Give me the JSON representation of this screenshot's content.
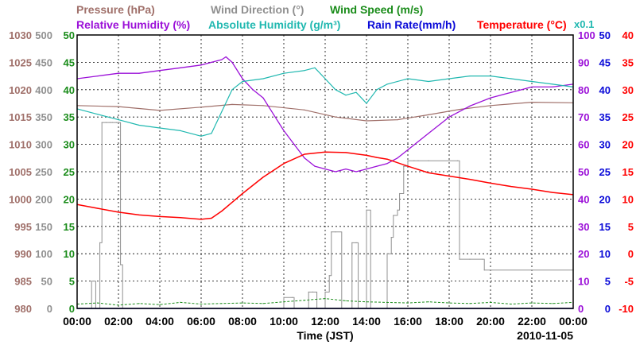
{
  "chart_data": {
    "type": "line",
    "date": "2010-11-05",
    "xlabel": "Time (JST)",
    "scale_note": "x0.1",
    "x_ticks": [
      "00:00",
      "02:00",
      "04:00",
      "06:00",
      "08:00",
      "10:00",
      "12:00",
      "14:00",
      "16:00",
      "18:00",
      "20:00",
      "22:00",
      "00:00"
    ],
    "xlim": [
      0,
      24
    ],
    "legend": [
      {
        "key": "pressure",
        "label": "Pressure (hPa)",
        "color": "#a0706a"
      },
      {
        "key": "wind_direction",
        "label": "Wind Direction (°)",
        "color": "#909090"
      },
      {
        "key": "wind_speed",
        "label": "Wind Speed (m/s)",
        "color": "#1a8c1a"
      },
      {
        "key": "relative_humidity",
        "label": "Relative Humidity (%)",
        "color": "#9b10d8"
      },
      {
        "key": "absolute_humidity",
        "label": "Absolute Humidity (g/m³)",
        "color": "#20b8b0"
      },
      {
        "key": "rain_rate",
        "label": "Rain Rate(mm/h)",
        "color": "#0a0ad8"
      },
      {
        "key": "temperature",
        "label": "Temperature (°C)",
        "color": "#ff0000"
      }
    ],
    "axes": [
      {
        "key": "pressure",
        "side": "left",
        "range": [
          980,
          1030
        ],
        "ticks": [
          "1030",
          "1025",
          "1020",
          "1015",
          "1010",
          "1005",
          "1000",
          "995",
          "990",
          "985",
          "980"
        ],
        "color": "#a0706a"
      },
      {
        "key": "wind_direction",
        "side": "left",
        "range": [
          0,
          500
        ],
        "ticks": [
          "500",
          "450",
          "400",
          "350",
          "300",
          "250",
          "200",
          "150",
          "100",
          "50",
          "0"
        ],
        "color": "#909090"
      },
      {
        "key": "wind_speed",
        "side": "left",
        "range": [
          0,
          50
        ],
        "ticks": [
          "50",
          "45",
          "40",
          "35",
          "30",
          "25",
          "20",
          "15",
          "10",
          "5",
          "0"
        ],
        "color": "#1a8c1a"
      },
      {
        "key": "relative_humidity",
        "side": "right",
        "range": [
          0,
          100
        ],
        "ticks": [
          "100",
          "90",
          "80",
          "70",
          "60",
          "50",
          "40",
          "30",
          "20",
          "10",
          "0"
        ],
        "color": "#9b10d8"
      },
      {
        "key": "rain_rate",
        "side": "right",
        "range": [
          0,
          50
        ],
        "ticks": [
          "50",
          "45",
          "40",
          "35",
          "30",
          "25",
          "20",
          "15",
          "10",
          "5",
          "0"
        ],
        "color": "#0a0ad8"
      },
      {
        "key": "temperature",
        "side": "right",
        "range": [
          -10,
          40
        ],
        "ticks": [
          "40",
          "35",
          "30",
          "25",
          "20",
          "15",
          "10",
          "5",
          "0",
          "-5",
          "-10"
        ],
        "color": "#ff0000"
      }
    ],
    "series": [
      {
        "name": "Pressure (hPa)",
        "axis": "pressure",
        "color": "#a0706a",
        "x": [
          0,
          2,
          4,
          6,
          7.5,
          9,
          11,
          12.5,
          14,
          15.5,
          17,
          18.5,
          20,
          22,
          24
        ],
        "values": [
          1017.1,
          1016.9,
          1016.2,
          1016.8,
          1017.3,
          1017.1,
          1016.3,
          1015.0,
          1014.3,
          1014.5,
          1015.4,
          1016.4,
          1017.1,
          1017.7,
          1017.6
        ]
      },
      {
        "name": "Wind Direction (°)",
        "axis": "wind_direction",
        "color": "#909090",
        "x": [
          0,
          0.6,
          0.7,
          0.9,
          1.0,
          1.1,
          1.2,
          1.4,
          1.6,
          1.7,
          1.9,
          2.0,
          2.1,
          2.2,
          9.0,
          9.5,
          10.0,
          10.4,
          10.5,
          11.0,
          11.2,
          11.4,
          11.6,
          11.8,
          12.0,
          12.2,
          12.3,
          12.5,
          12.8,
          13.0,
          13.3,
          13.5,
          13.6,
          13.8,
          14.0,
          14.2,
          14.5,
          14.8,
          15.0,
          15.2,
          15.3,
          15.5,
          15.6,
          15.8,
          16.0,
          16.3,
          16.5,
          17.0,
          18.0,
          18.4,
          18.5,
          19.0,
          19.6,
          19.7,
          20.0,
          22.0,
          24.0
        ],
        "values": [
          0,
          0,
          50,
          0,
          0,
          120,
          340,
          340,
          340,
          340,
          340,
          340,
          80,
          0,
          0,
          0,
          20,
          20,
          0,
          0,
          30,
          30,
          0,
          0,
          30,
          60,
          140,
          140,
          0,
          0,
          120,
          120,
          0,
          0,
          180,
          0,
          0,
          0,
          100,
          130,
          170,
          180,
          210,
          260,
          270,
          270,
          270,
          270,
          270,
          270,
          90,
          90,
          90,
          70,
          70,
          70,
          70
        ]
      },
      {
        "name": "Wind Speed (m/s)",
        "axis": "wind_speed",
        "color": "#1a8c1a",
        "x": [
          0,
          1,
          2,
          3,
          4,
          5,
          6,
          7,
          8,
          9,
          10,
          11,
          12,
          13,
          14,
          15,
          16,
          17,
          18,
          19,
          20,
          21,
          22,
          23,
          24
        ],
        "values": [
          0.8,
          1.0,
          0.6,
          0.9,
          0.7,
          1.1,
          0.8,
          0.9,
          1.0,
          0.9,
          1.2,
          1.5,
          1.8,
          1.4,
          1.2,
          1.1,
          1.0,
          1.2,
          1.0,
          0.9,
          1.1,
          0.8,
          1.0,
          0.9,
          1.1
        ]
      },
      {
        "name": "Relative Humidity (%)",
        "axis": "relative_humidity",
        "color": "#9b10d8",
        "x": [
          0,
          1,
          2,
          3,
          4,
          5,
          6,
          6.5,
          7,
          7.2,
          7.5,
          8,
          8.5,
          9,
          9.5,
          10,
          10.5,
          11,
          11.5,
          12,
          12.5,
          13,
          13.5,
          14,
          14.5,
          15,
          15.5,
          16,
          17,
          18,
          19,
          20,
          21,
          22,
          23,
          24
        ],
        "values": [
          84,
          85,
          86,
          86,
          87,
          88,
          89,
          90,
          91,
          92,
          90,
          84,
          80,
          77,
          71,
          65,
          60,
          55,
          52,
          51,
          50,
          51,
          50,
          51,
          52,
          53,
          55,
          58,
          64,
          70,
          74,
          77,
          79,
          81,
          81,
          82
        ]
      },
      {
        "name": "Absolute Humidity (g/m³)",
        "axis": "wind_speed",
        "color": "#20b8b0",
        "x": [
          0,
          1,
          2,
          3,
          4,
          5,
          6,
          6.5,
          7,
          7.5,
          8,
          9,
          10,
          11,
          11.5,
          12,
          12.5,
          13,
          13.5,
          14,
          14.5,
          15,
          16,
          17,
          18,
          19,
          20,
          21,
          22,
          23,
          24
        ],
        "values": [
          36.5,
          35.5,
          34.5,
          33.5,
          33,
          32.5,
          31.5,
          32,
          36,
          40,
          41.5,
          42,
          43,
          43.5,
          44,
          42,
          40,
          39,
          39.5,
          37.5,
          40,
          41,
          42,
          41.5,
          42,
          42.5,
          42.5,
          42,
          41.5,
          41,
          40.5
        ]
      },
      {
        "name": "Rain Rate(mm/h)",
        "axis": "rain_rate",
        "color": "#0a0ad8",
        "x": [
          0,
          24
        ],
        "values": [
          0,
          0
        ]
      },
      {
        "name": "Temperature (°C)",
        "axis": "temperature",
        "color": "#ff0000",
        "x": [
          0,
          1,
          2,
          3,
          4,
          5,
          6,
          6.5,
          7,
          8,
          9,
          10,
          11,
          12,
          13,
          14,
          14.5,
          15,
          16,
          17,
          18,
          19,
          20,
          21,
          22,
          23,
          24
        ],
        "values": [
          9.0,
          8.3,
          7.6,
          7.1,
          6.8,
          6.6,
          6.3,
          6.5,
          7.8,
          11.0,
          14.0,
          16.5,
          18.2,
          18.6,
          18.5,
          18.0,
          17.6,
          17.3,
          16.0,
          14.8,
          14.2,
          13.6,
          12.9,
          12.3,
          11.8,
          11.2,
          10.8
        ]
      }
    ]
  }
}
